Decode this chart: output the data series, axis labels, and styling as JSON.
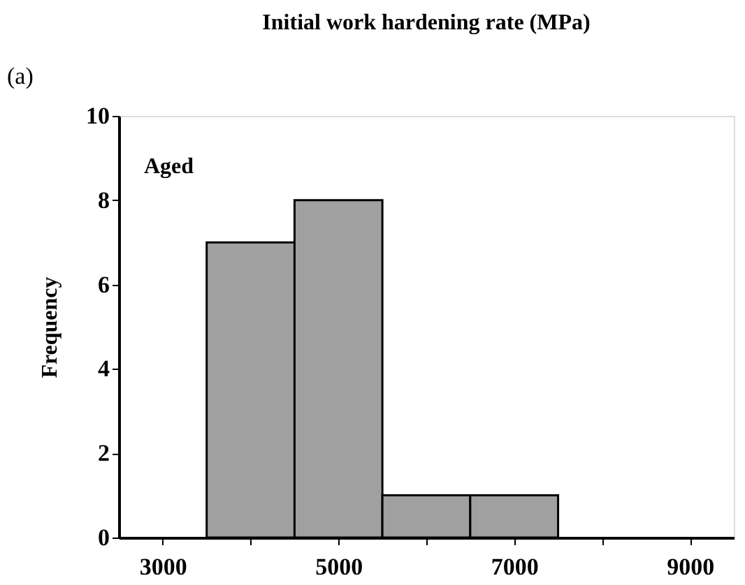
{
  "chart_data": {
    "type": "histogram",
    "title": "Initial work hardening rate (MPa)",
    "ylabel": "Frequency",
    "annotations": [
      "(a)",
      "Aged"
    ],
    "bins": [
      3500,
      4500,
      5500,
      6500,
      7500
    ],
    "values": [
      7,
      8,
      1,
      1
    ],
    "color": "#a0a0a0",
    "xlim": [
      2500,
      9500
    ],
    "xticks": [
      3000,
      {
        "value": 4000,
        "label": null
      },
      5000,
      {
        "value": 6000,
        "label": null
      },
      7000,
      {
        "value": 8000,
        "label": null
      },
      9000
    ],
    "ylim": [
      0,
      10
    ],
    "yticks": [
      0,
      2,
      4,
      6,
      8,
      10
    ],
    "grid": false
  }
}
